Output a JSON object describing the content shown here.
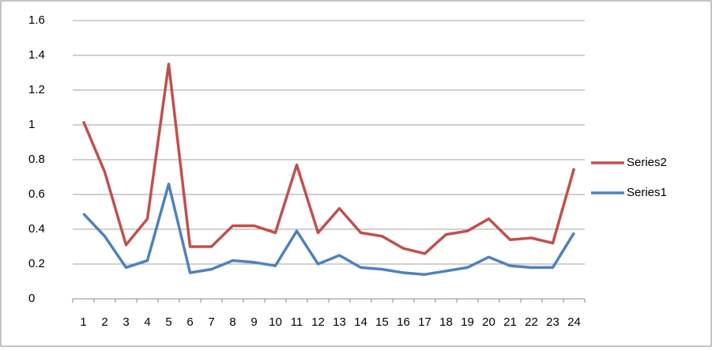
{
  "chart_data": {
    "type": "line",
    "categories": [
      "1",
      "2",
      "3",
      "4",
      "5",
      "6",
      "7",
      "8",
      "9",
      "10",
      "11",
      "12",
      "13",
      "14",
      "15",
      "16",
      "17",
      "18",
      "19",
      "20",
      "21",
      "22",
      "23",
      "24"
    ],
    "series": [
      {
        "name": "Series2",
        "color": "#c0504d",
        "values": [
          1.02,
          0.73,
          0.31,
          0.46,
          1.35,
          0.3,
          0.3,
          0.42,
          0.42,
          0.38,
          0.77,
          0.38,
          0.52,
          0.38,
          0.36,
          0.29,
          0.26,
          0.37,
          0.39,
          0.46,
          0.34,
          0.35,
          0.32,
          0.75
        ]
      },
      {
        "name": "Series1",
        "color": "#4f81bd",
        "values": [
          0.49,
          0.36,
          0.18,
          0.22,
          0.66,
          0.15,
          0.17,
          0.22,
          0.21,
          0.19,
          0.39,
          0.2,
          0.25,
          0.18,
          0.17,
          0.15,
          0.14,
          0.16,
          0.18,
          0.24,
          0.19,
          0.18,
          0.18,
          0.38
        ]
      }
    ],
    "ylim": [
      0,
      1.6
    ],
    "yticks": [
      0,
      0.2,
      0.4,
      0.6,
      0.8,
      1,
      1.2,
      1.4,
      1.6
    ],
    "grid": true,
    "legend": "right"
  }
}
